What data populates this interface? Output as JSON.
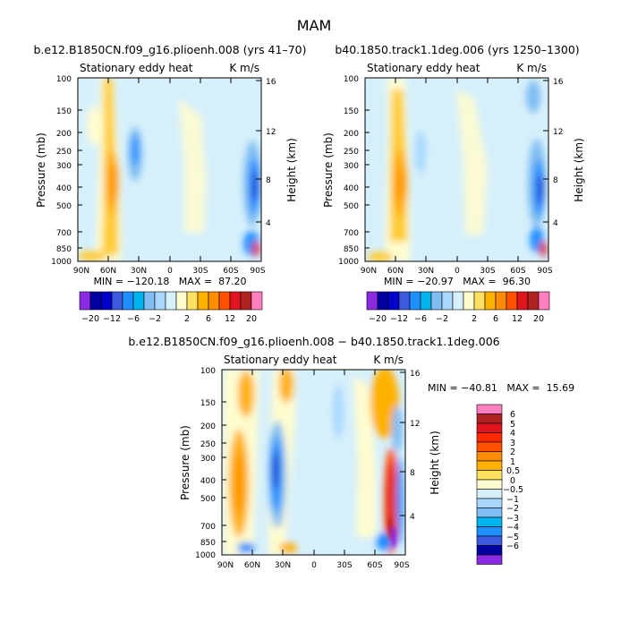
{
  "page_title": "MAM",
  "chart_data": [
    {
      "type": "heatmap",
      "title": "b.e12.B1850CN.f09_g16.plioenh.008 (yrs 41–70)",
      "subtitle_left": "Stationary eddy heat",
      "subtitle_right": "K m/s",
      "xlabel": "",
      "ylabel": "Pressure (mb)",
      "ylabel_right": "Height (km)",
      "x_ticks": [
        "90N",
        "60N",
        "30N",
        "0",
        "30S",
        "60S",
        "90S"
      ],
      "y_ticks": [
        "100",
        "150",
        "200",
        "250",
        "300",
        "400",
        "500",
        "700",
        "850",
        "1000"
      ],
      "y_right_ticks": [
        "16",
        "12",
        "8",
        "4"
      ],
      "stats": "MIN = −120.18   MAX =  87.20",
      "colorbar_labels": [
        "−20",
        "−12",
        "−6",
        "−2",
        "2",
        "6",
        "12",
        "20"
      ]
    },
    {
      "type": "heatmap",
      "title": "b40.1850.track1.1deg.006 (yrs 1250–1300)",
      "subtitle_left": "Stationary eddy heat",
      "subtitle_right": "K m/s",
      "xlabel": "",
      "ylabel": "Pressure (mb)",
      "ylabel_right": "Height (km)",
      "x_ticks": [
        "90N",
        "60N",
        "30N",
        "0",
        "30S",
        "60S",
        "90S"
      ],
      "y_ticks": [
        "100",
        "150",
        "200",
        "250",
        "300",
        "400",
        "500",
        "700",
        "850",
        "1000"
      ],
      "y_right_ticks": [
        "16",
        "12",
        "8",
        "4"
      ],
      "stats": "MIN = −20.97   MAX =  96.30",
      "colorbar_labels": [
        "−20",
        "−12",
        "−6",
        "−2",
        "2",
        "6",
        "12",
        "20"
      ]
    },
    {
      "type": "heatmap",
      "title": "b.e12.B1850CN.f09_g16.plioenh.008 − b40.1850.track1.1deg.006",
      "subtitle_left": "Stationary eddy heat",
      "subtitle_right": "K m/s",
      "xlabel": "",
      "ylabel": "Pressure (mb)",
      "ylabel_right": "Height (km)",
      "x_ticks": [
        "90N",
        "60N",
        "30N",
        "0",
        "30S",
        "60S",
        "90S"
      ],
      "y_ticks": [
        "100",
        "150",
        "200",
        "250",
        "300",
        "400",
        "500",
        "700",
        "850",
        "1000"
      ],
      "y_right_ticks": [
        "16",
        "12",
        "8",
        "4"
      ],
      "stats": "MIN = −40.81   MAX =  15.69",
      "colorbar_labels": [
        "6",
        "5",
        "4",
        "3",
        "2",
        "1",
        "0.5",
        "0",
        "−0.5",
        "−1",
        "−2",
        "−3",
        "−4",
        "−5",
        "−6"
      ]
    }
  ],
  "palette": {
    "strong_neg": "#8a2be2",
    "neg": "#1e90ff",
    "weak_neg": "#d6f0fb",
    "weak_pos": "#fffccf",
    "pos": "#ffb100",
    "strong_pos": "#e0141e",
    "max": "#ff7fc0"
  }
}
